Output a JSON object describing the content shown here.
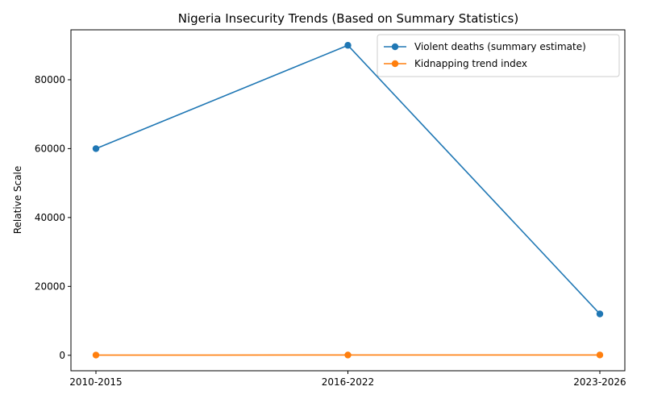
{
  "chart_data": {
    "type": "line",
    "title": "Nigeria Insecurity Trends (Based on Summary Statistics)",
    "xlabel": "",
    "ylabel": "Relative Scale",
    "categories": [
      "2010-2015",
      "2016-2022",
      "2023-2026"
    ],
    "ylim": [
      -4500,
      94500
    ],
    "yticks": [
      0,
      20000,
      40000,
      60000,
      80000
    ],
    "legend_position": "top-right",
    "grid": false,
    "series": [
      {
        "name": "Violent deaths (summary estimate)",
        "values": [
          60000,
          90000,
          12000
        ],
        "color": "#1f77b4"
      },
      {
        "name": "Kidnapping trend index",
        "values": [
          50,
          70,
          90
        ],
        "color": "#ff7f0e"
      }
    ]
  }
}
